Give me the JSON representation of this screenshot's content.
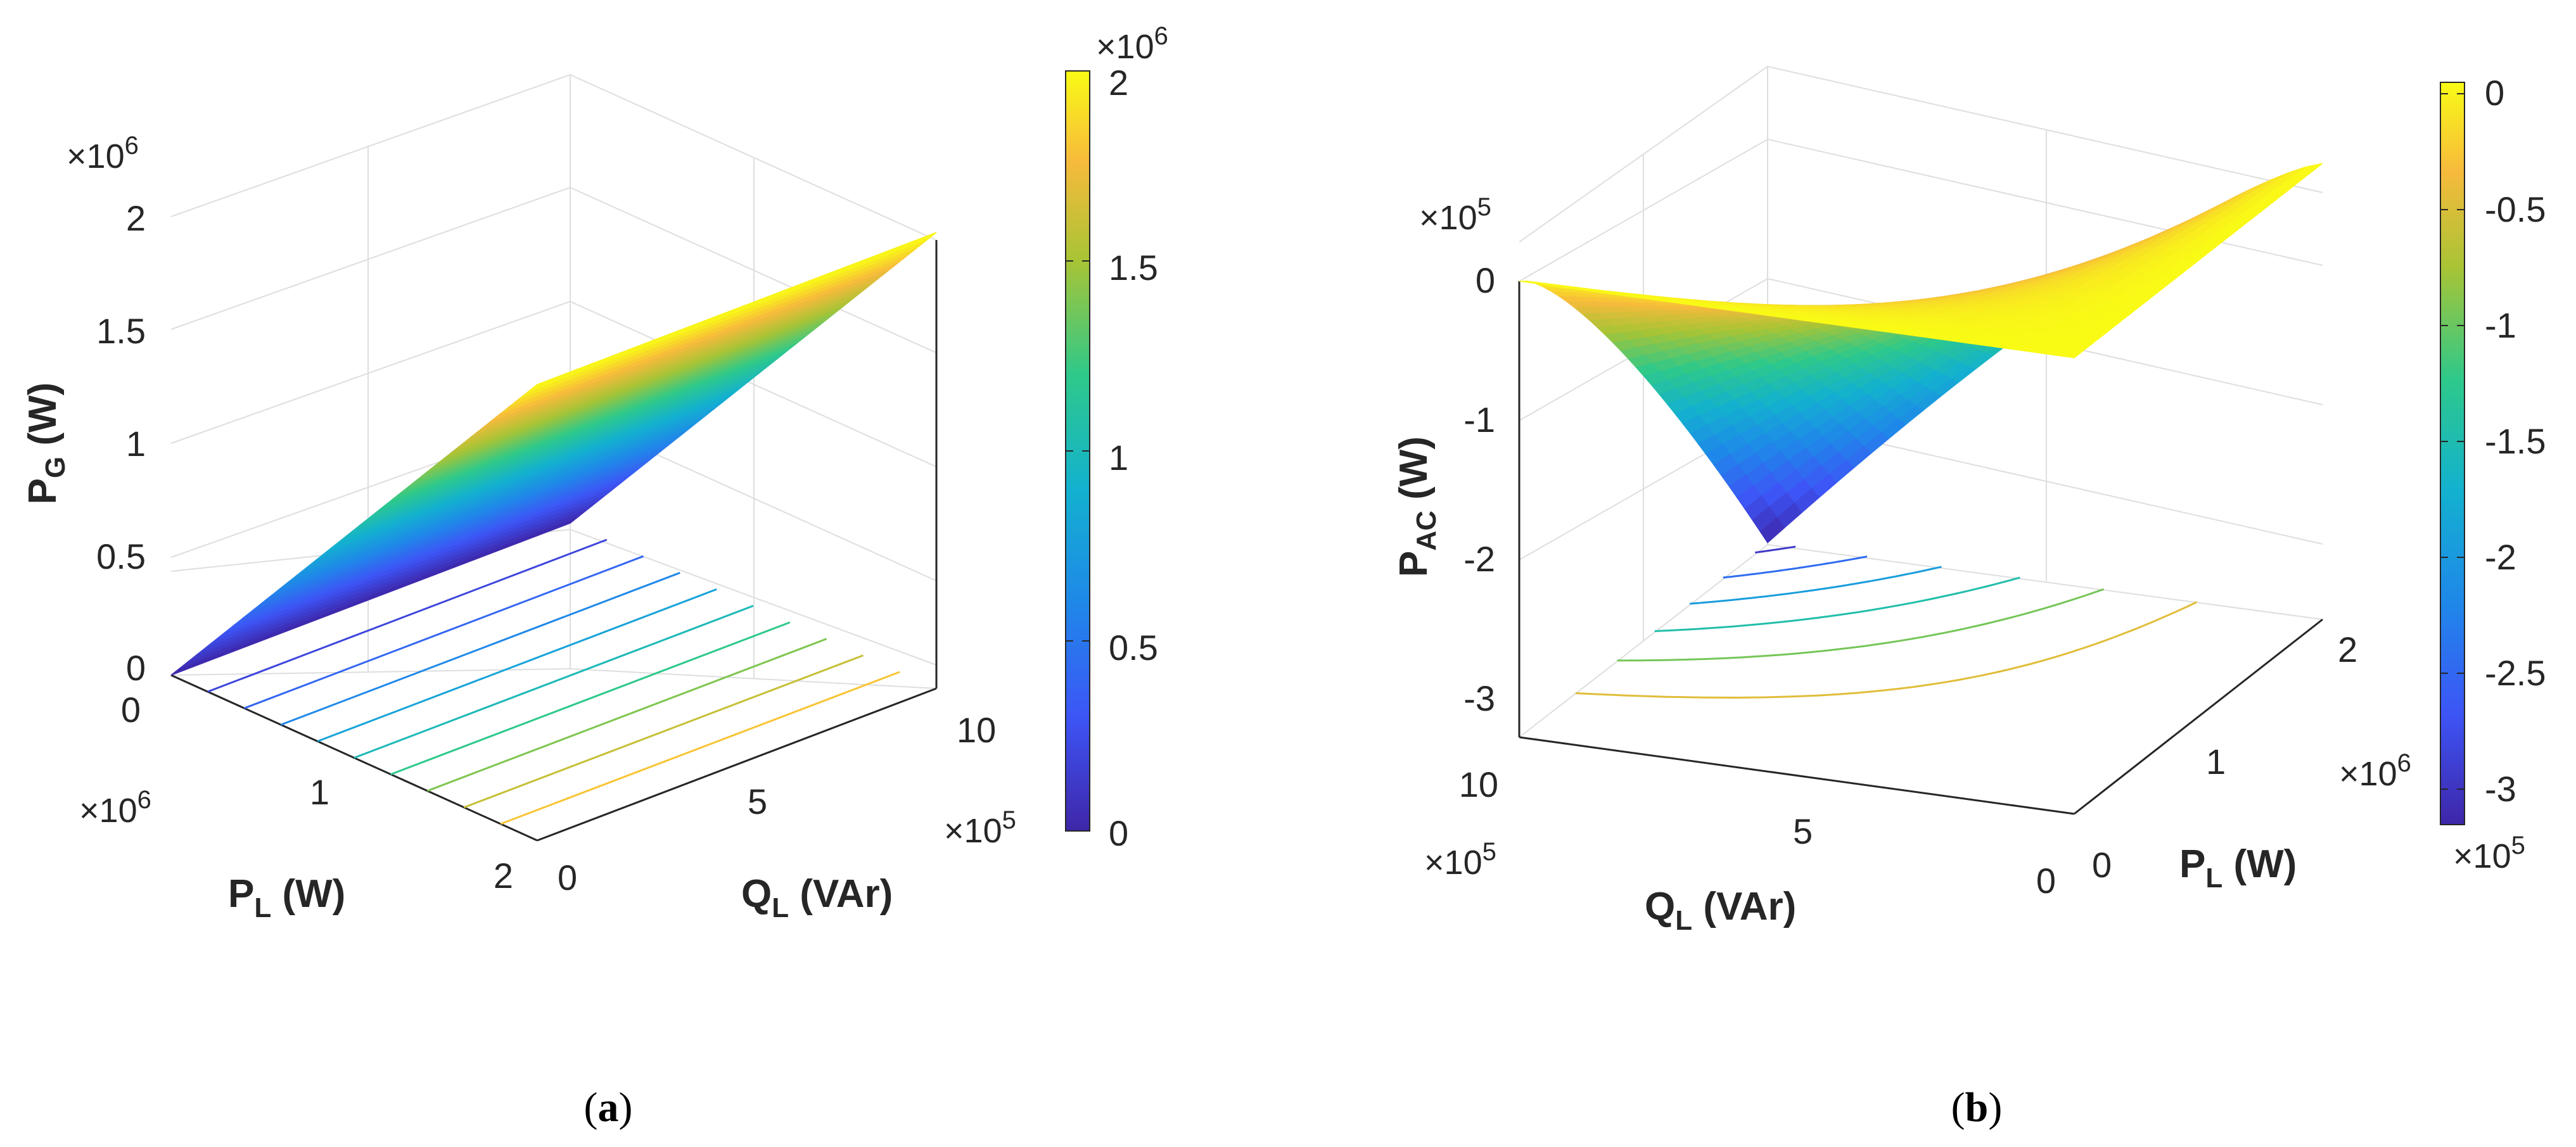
{
  "chart_data": [
    {
      "type": "surface3d",
      "panel": "a",
      "caption": "(a)",
      "z_label_main": "P",
      "z_label_sub": "G",
      "z_label_unit": " (W)",
      "x_label_main": "P",
      "x_label_sub": "L",
      "x_label_unit": " (W)",
      "y_label_main": "Q",
      "y_label_sub": "L",
      "y_label_unit": " (VAr)",
      "z_exponent": "×10",
      "z_exponent_power": "6",
      "x_exponent": "×10",
      "x_exponent_power": "6",
      "y_exponent": "×10",
      "y_exponent_power": "5",
      "colorbar_exponent": "×10",
      "colorbar_exponent_power": "6",
      "z_ticks": [
        "0",
        "0.5",
        "1",
        "1.5",
        "2"
      ],
      "x_ticks": [
        "0",
        "1",
        "2"
      ],
      "y_ticks": [
        "0",
        "5",
        "10"
      ],
      "colorbar_ticks": [
        "0",
        "0.5",
        "1",
        "1.5",
        "2"
      ],
      "x_range": [
        0,
        2000000
      ],
      "y_range": [
        0,
        1000000
      ],
      "z_range": [
        0,
        2000000
      ],
      "surface_formula": "P_G = P_L",
      "contour_levels_z": [
        200000,
        400000,
        600000,
        800000,
        1000000,
        1200000,
        1400000,
        1600000,
        1800000
      ],
      "colormap": "parula",
      "colorbar_range": [
        0,
        2000000
      ]
    },
    {
      "type": "surface3d",
      "panel": "b",
      "caption": "(b)",
      "z_label_main": "P",
      "z_label_sub": "AC",
      "z_label_unit": " (W)",
      "x_label_main": "P",
      "x_label_sub": "L",
      "x_label_unit": " (W)",
      "y_label_main": "Q",
      "y_label_sub": "L",
      "y_label_unit": " (VAr)",
      "z_exponent": "×10",
      "z_exponent_power": "5",
      "x_exponent": "×10",
      "x_exponent_power": "6",
      "y_exponent": "×10",
      "y_exponent_power": "5",
      "colorbar_exponent": "×10",
      "colorbar_exponent_power": "5",
      "z_ticks": [
        "-3",
        "-2",
        "-1",
        "0"
      ],
      "x_ticks": [
        "0",
        "1",
        "2"
      ],
      "y_ticks": [
        "0",
        "5",
        "10"
      ],
      "colorbar_ticks": [
        "0",
        "-0.5",
        "-1",
        "-1.5",
        "-2",
        "-2.5",
        "-3"
      ],
      "x_range": [
        0,
        2000000
      ],
      "y_range": [
        0,
        1000000
      ],
      "z_range": [
        -320000,
        0
      ],
      "surface_corners": {
        "P0_Q0": 0,
        "P2_Q0": 0,
        "P0_Q10": 0,
        "P2_Q10": -320000
      },
      "contour_levels_z": [
        -50000,
        -100000,
        -150000,
        -200000,
        -250000,
        -300000
      ],
      "colormap": "parula",
      "colorbar_range": [
        -320000,
        0
      ]
    }
  ]
}
